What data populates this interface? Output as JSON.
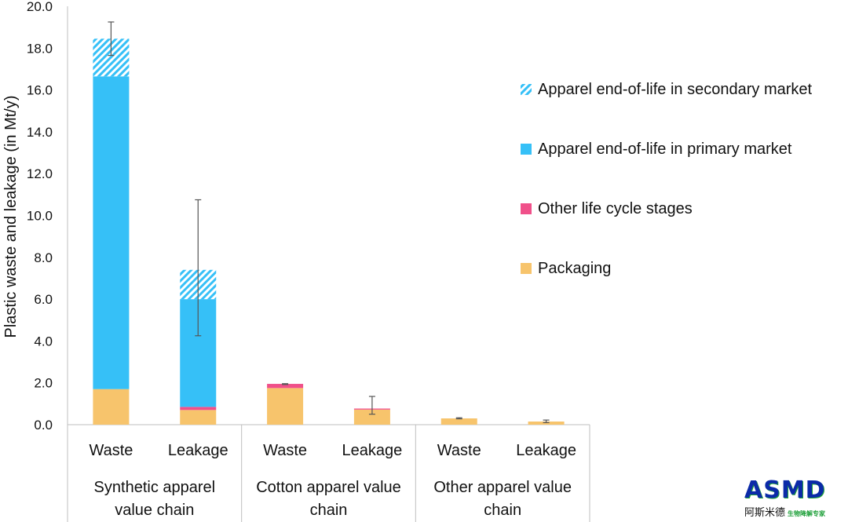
{
  "chart_data": {
    "type": "bar",
    "stacked": true,
    "ylabel": "Plastic waste and leakage (in Mt/y)",
    "ylim": [
      0,
      20
    ],
    "yticks": [
      "0.0",
      "2.0",
      "4.0",
      "6.0",
      "8.0",
      "10.0",
      "12.0",
      "14.0",
      "16.0",
      "18.0",
      "20.0"
    ],
    "grid": false,
    "legend_position": "right",
    "groups": [
      {
        "label": "Synthetic apparel value chain",
        "lines": [
          "Synthetic apparel",
          "value chain"
        ],
        "categories": [
          "Waste",
          "Leakage"
        ]
      },
      {
        "label": "Cotton apparel value chain",
        "lines": [
          "Cotton apparel value",
          "chain"
        ],
        "categories": [
          "Waste",
          "Leakage"
        ]
      },
      {
        "label": "Other apparel value chain",
        "lines": [
          "Other apparel value",
          "chain"
        ],
        "categories": [
          "Waste",
          "Leakage"
        ]
      }
    ],
    "categories": [
      "Waste",
      "Leakage",
      "Waste",
      "Leakage",
      "Waste",
      "Leakage"
    ],
    "series": [
      {
        "name": "Packaging",
        "color": "#f7c46c",
        "pattern": "solid",
        "values": [
          1.7,
          0.7,
          1.75,
          0.72,
          0.3,
          0.15
        ]
      },
      {
        "name": "Other life cycle stages",
        "color": "#f0508a",
        "pattern": "solid",
        "values": [
          0.0,
          0.15,
          0.2,
          0.05,
          0.0,
          0.0
        ]
      },
      {
        "name": "Apparel end-of-life in primary market",
        "color": "#36c0f7",
        "pattern": "solid",
        "values": [
          14.95,
          5.15,
          0.0,
          0.0,
          0.0,
          0.0
        ]
      },
      {
        "name": "Apparel end-of-life in secondary market",
        "color": "#36c0f7",
        "pattern": "hatched",
        "values": [
          1.8,
          1.4,
          0.0,
          0.0,
          0.0,
          0.0
        ]
      }
    ],
    "error_bars": [
      {
        "low": 17.65,
        "high": 19.25
      },
      {
        "low": 4.25,
        "high": 10.75
      },
      {
        "low": 1.92,
        "high": 1.96
      },
      {
        "low": 0.5,
        "high": 1.35
      },
      {
        "low": 0.28,
        "high": 0.33
      },
      {
        "low": 0.1,
        "high": 0.22
      }
    ],
    "legend_order": [
      "Apparel end-of-life in secondary market",
      "Apparel end-of-life in primary market",
      "Other life cycle stages",
      "Packaging"
    ]
  },
  "logo": {
    "text": "ASMD",
    "cn_name": "阿斯米德",
    "cn_tagline": "生物降解专家"
  }
}
